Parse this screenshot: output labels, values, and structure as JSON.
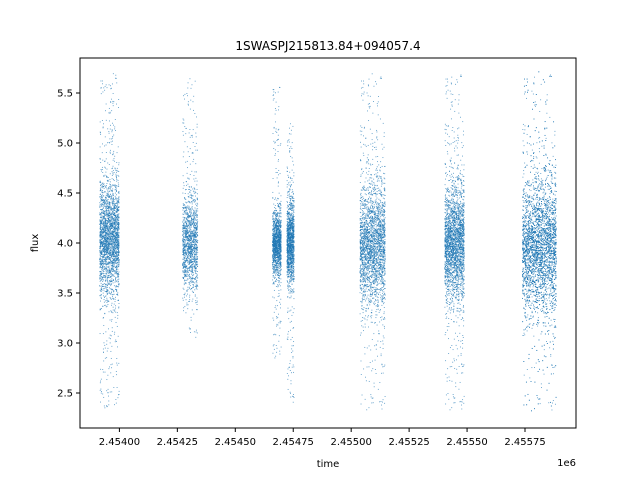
{
  "chart_data": {
    "type": "scatter",
    "title": "1SWASPJ215813.84+094057.4",
    "xlabel": "time",
    "ylabel": "flux",
    "x_offset_label": "1e6",
    "x_tick_values": [
      2.454,
      2.45425,
      2.4545,
      2.45475,
      2.455,
      2.45525,
      2.4555,
      2.45575
    ],
    "x_tick_labels": [
      "2.45400",
      "2.45425",
      "2.45450",
      "2.45475",
      "2.45500",
      "2.45525",
      "2.45550",
      "2.45575"
    ],
    "y_tick_values": [
      2.5,
      3.0,
      3.5,
      4.0,
      4.5,
      5.0,
      5.5
    ],
    "y_tick_labels": [
      "2.5",
      "3.0",
      "3.5",
      "4.0",
      "4.5",
      "5.0",
      "5.5"
    ],
    "xlim": [
      2.45383,
      2.45597
    ],
    "ylim": [
      2.15,
      5.85
    ],
    "grid": false,
    "legend": "none",
    "point_color": "#1f77b4",
    "series": [
      {
        "clusters": [
          {
            "x_start": 2.453913,
            "x_end": 2.453997,
            "center": 4.05,
            "spread": 0.28,
            "y_min": 2.35,
            "y_max": 5.7,
            "density": "high"
          },
          {
            "x_start": 2.454271,
            "x_end": 2.454336,
            "center": 4.0,
            "spread": 0.24,
            "y_min": 3.05,
            "y_max": 5.65,
            "density": "medium"
          },
          {
            "x_start": 2.454659,
            "x_end": 2.454696,
            "center": 4.0,
            "spread": 0.16,
            "y_min": 2.85,
            "y_max": 5.6,
            "density": "medium"
          },
          {
            "x_start": 2.454721,
            "x_end": 2.454752,
            "center": 4.0,
            "spread": 0.2,
            "y_min": 2.4,
            "y_max": 5.2,
            "density": "medium"
          },
          {
            "x_start": 2.455036,
            "x_end": 2.455145,
            "center": 3.98,
            "spread": 0.3,
            "y_min": 2.33,
            "y_max": 5.7,
            "density": "high"
          },
          {
            "x_start": 2.455402,
            "x_end": 2.455486,
            "center": 4.0,
            "spread": 0.28,
            "y_min": 2.33,
            "y_max": 5.72,
            "density": "high"
          },
          {
            "x_start": 2.455737,
            "x_end": 2.455883,
            "center": 3.97,
            "spread": 0.33,
            "y_min": 2.32,
            "y_max": 5.72,
            "density": "very-high"
          }
        ]
      }
    ]
  }
}
